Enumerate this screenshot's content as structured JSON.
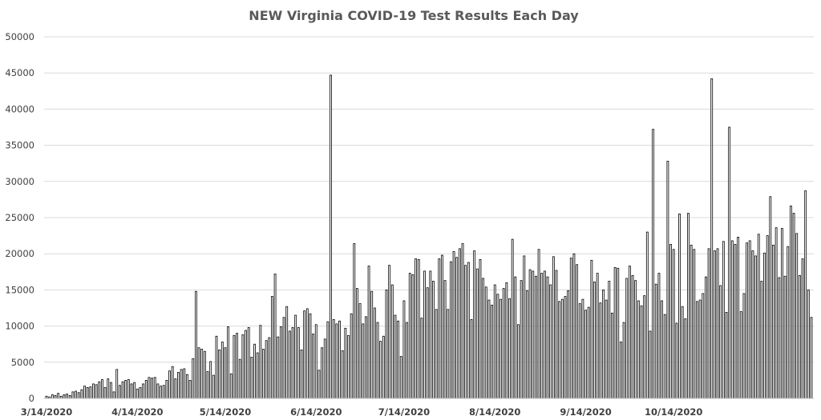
{
  "chart_data": {
    "type": "bar",
    "title": "NEW Virginia COVID-19 Test Results Each Day",
    "xlabel": "",
    "ylabel": "",
    "ylim": [
      0,
      50000
    ],
    "grid": true,
    "legend": "none",
    "colors": {
      "bar_fill": "#ffffff",
      "bar_stroke": "#000000",
      "grid": "#d9d9d9",
      "title": "#595959"
    },
    "y_ticks": [
      "0",
      "5000",
      "10000",
      "15000",
      "20000",
      "25000",
      "30000",
      "35000",
      "40000",
      "45000",
      "50000"
    ],
    "x_ticks": [
      "3/14/2020",
      "4/14/2020",
      "5/14/2020",
      "6/14/2020",
      "7/14/2020",
      "8/14/2020",
      "9/14/2020",
      "10/14/2020"
    ],
    "start_date": "2020-03-14",
    "values": [
      300,
      200,
      500,
      400,
      700,
      300,
      500,
      600,
      400,
      900,
      1000,
      800,
      1200,
      1700,
      1500,
      1600,
      2000,
      1900,
      2300,
      2600,
      1500,
      2700,
      2200,
      900,
      4000,
      1800,
      2300,
      2500,
      2600,
      2000,
      2200,
      1300,
      1500,
      2000,
      2500,
      2900,
      2800,
      2900,
      2000,
      1700,
      1800,
      2500,
      3800,
      4400,
      2700,
      3600,
      4000,
      4100,
      3300,
      2500,
      5500,
      14800,
      7000,
      6800,
      6500,
      3700,
      5100,
      3200,
      8600,
      6700,
      7800,
      7000,
      9900,
      3400,
      8700,
      9000,
      5400,
      8800,
      9400,
      9800,
      5700,
      7500,
      6300,
      10100,
      6800,
      8000,
      8400,
      14100,
      17200,
      8500,
      9900,
      11200,
      12700,
      9300,
      9800,
      11500,
      9800,
      6700,
      12100,
      12400,
      11700,
      8900,
      10200,
      3900,
      7000,
      8200,
      10600,
      44700,
      10900,
      10300,
      10700,
      6600,
      9700,
      8700,
      11700,
      21400,
      15200,
      13100,
      10300,
      11300,
      18300,
      14800,
      12500,
      10500,
      7900,
      8600,
      15000,
      18400,
      15700,
      11500,
      10700,
      5800,
      13500,
      10500,
      17300,
      17100,
      19300,
      19200,
      11100,
      17600,
      15300,
      17600,
      16200,
      12300,
      19300,
      19800,
      16300,
      12300,
      18900,
      20300,
      19500,
      20700,
      21400,
      18400,
      18800,
      10900,
      20400,
      17900,
      19200,
      16600,
      15400,
      13600,
      12900,
      15700,
      14400,
      13700,
      15200,
      16000,
      13800,
      22000,
      16800,
      10200,
      16300,
      19700,
      14900,
      17800,
      17600,
      16900,
      20600,
      17300,
      17600,
      16800,
      15700,
      19600,
      17700,
      13400,
      13700,
      14100,
      14900,
      19400,
      20000,
      18500,
      13100,
      13700,
      12200,
      12600,
      19100,
      16100,
      17300,
      13200,
      15000,
      13600,
      16200,
      11800,
      18100,
      18000,
      7800,
      10500,
      16600,
      18300,
      17000,
      16300,
      13500,
      12800,
      14200,
      23000,
      9300,
      37200,
      15800,
      17300,
      13500,
      11600,
      32800,
      21300,
      20600,
      10400,
      25500,
      12700,
      11000,
      25600,
      21200,
      20600,
      13400,
      13600,
      14500,
      16800,
      20700,
      44200,
      20400,
      20700,
      15600,
      21700,
      11900,
      37500,
      21800,
      21300,
      22300,
      12000,
      14500,
      21500,
      21800,
      20400,
      19700,
      22700,
      16200,
      20100,
      22500,
      27900,
      21200,
      23600,
      16700,
      23500,
      16900,
      21000,
      26600,
      25600,
      22800,
      17000,
      19300,
      28700,
      15000,
      11200
    ]
  }
}
